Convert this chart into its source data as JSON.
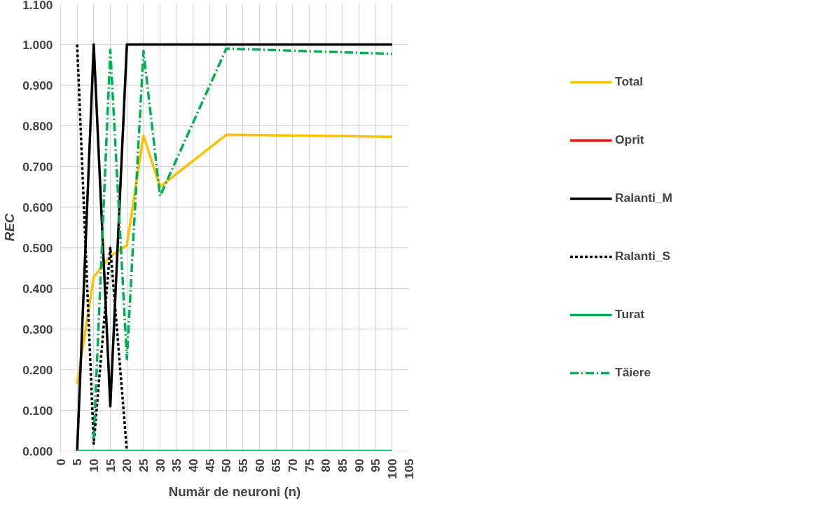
{
  "chart_data": {
    "type": "line",
    "xlabel": "Număr de neuroni (n)",
    "ylabel": "REC",
    "x": [
      5,
      10,
      15,
      20,
      25,
      30,
      50,
      100
    ],
    "series": [
      {
        "name": "Total",
        "color": "#ffc000",
        "line_style": "solid",
        "values": [
          0.165,
          0.428,
          0.479,
          0.506,
          0.776,
          0.65,
          0.778,
          0.773
        ]
      },
      {
        "name": "Oprit",
        "color": "#ff0000",
        "line_style": "solid",
        "values": [
          null,
          null,
          null,
          null,
          null,
          null,
          null,
          null
        ]
      },
      {
        "name": "Ralanti_M",
        "color": "#000000",
        "line_style": "solid",
        "values": [
          0,
          1.0,
          0.11,
          1.0,
          1.0,
          1.0,
          1.0,
          1.0
        ]
      },
      {
        "name": "Ralanti_S",
        "color": "#000000",
        "line_style": "dashed",
        "values": [
          1.0,
          0.018,
          0.5,
          0,
          null,
          null,
          null,
          null
        ]
      },
      {
        "name": "Turat",
        "color": "#00b050",
        "line_style": "solid",
        "values": [
          0,
          0,
          0,
          0,
          0,
          0,
          0,
          0
        ]
      },
      {
        "name": "Tăiere",
        "color": "#00b050",
        "line_style": "dashdot",
        "values": [
          null,
          0.03,
          0.987,
          0.226,
          0.984,
          0.627,
          0.99,
          0.977
        ]
      }
    ],
    "xlim": [
      0,
      105
    ],
    "xticks": [
      0,
      5,
      10,
      15,
      20,
      25,
      30,
      35,
      40,
      45,
      50,
      55,
      60,
      65,
      70,
      75,
      80,
      85,
      90,
      95,
      100,
      105
    ],
    "ylim": [
      0,
      1.1
    ],
    "yticks": [
      {
        "value": 0,
        "label": "0.000"
      },
      {
        "value": 0.1,
        "label": "0.100"
      },
      {
        "value": 0.2,
        "label": "0.200"
      },
      {
        "value": 0.3,
        "label": "0.300"
      },
      {
        "value": 0.4,
        "label": "0.400"
      },
      {
        "value": 0.5,
        "label": "0.500"
      },
      {
        "value": 0.6,
        "label": "0.600"
      },
      {
        "value": 0.7,
        "label": "0.700"
      },
      {
        "value": 0.8,
        "label": "0.800"
      },
      {
        "value": 0.9,
        "label": "0.900"
      },
      {
        "value": 1.0,
        "label": "1.000"
      },
      {
        "value": 1.1,
        "label": "1.100"
      }
    ],
    "grid": true,
    "legend": "right",
    "marker": "none"
  }
}
